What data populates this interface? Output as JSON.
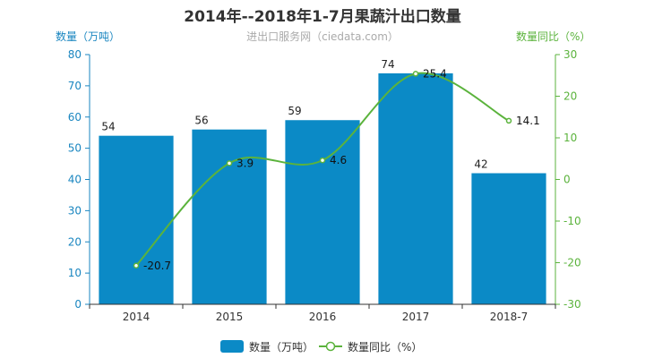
{
  "title": "2014年--2018年1-7月果蔬汁出口数量",
  "subtitle": "进出口服务网（ciedata.com）",
  "colors": {
    "bar": "#0b8ac6",
    "line": "#5bb33c",
    "left_axis": "#1a86c0",
    "right_axis": "#5bb33c",
    "text": "#333333"
  },
  "chart_data": {
    "type": "bar",
    "title": "2014年--2018年1-7月果蔬汁出口数量",
    "subtitle": "进出口服务网（ciedata.com）",
    "categories": [
      "2014",
      "2015",
      "2016",
      "2017",
      "2018-7"
    ],
    "ylabel": "数量（万吨）",
    "ylabel_right": "数量同比（%）",
    "ylim": [
      0,
      80
    ],
    "ylim_right": [
      -30,
      30
    ],
    "yticks": [
      "0",
      "10",
      "20",
      "30",
      "40",
      "50",
      "60",
      "70",
      "80"
    ],
    "yticks_right": [
      "-30",
      "-20",
      "-10",
      "0",
      "10",
      "20",
      "30"
    ],
    "grid": false,
    "legend_position": "bottom",
    "series": [
      {
        "name": "数量（万吨）",
        "type": "bar",
        "axis": "left",
        "values": [
          54,
          56,
          59,
          74,
          42
        ],
        "labels": [
          "54",
          "56",
          "59",
          "74",
          "42"
        ]
      },
      {
        "name": "数量同比（%）",
        "type": "line",
        "axis": "right",
        "smooth": true,
        "values": [
          -20.7,
          3.9,
          4.6,
          25.4,
          14.1
        ],
        "labels": [
          "-20.7",
          "3.9",
          "4.6",
          "25.4",
          "14.1"
        ]
      }
    ]
  }
}
